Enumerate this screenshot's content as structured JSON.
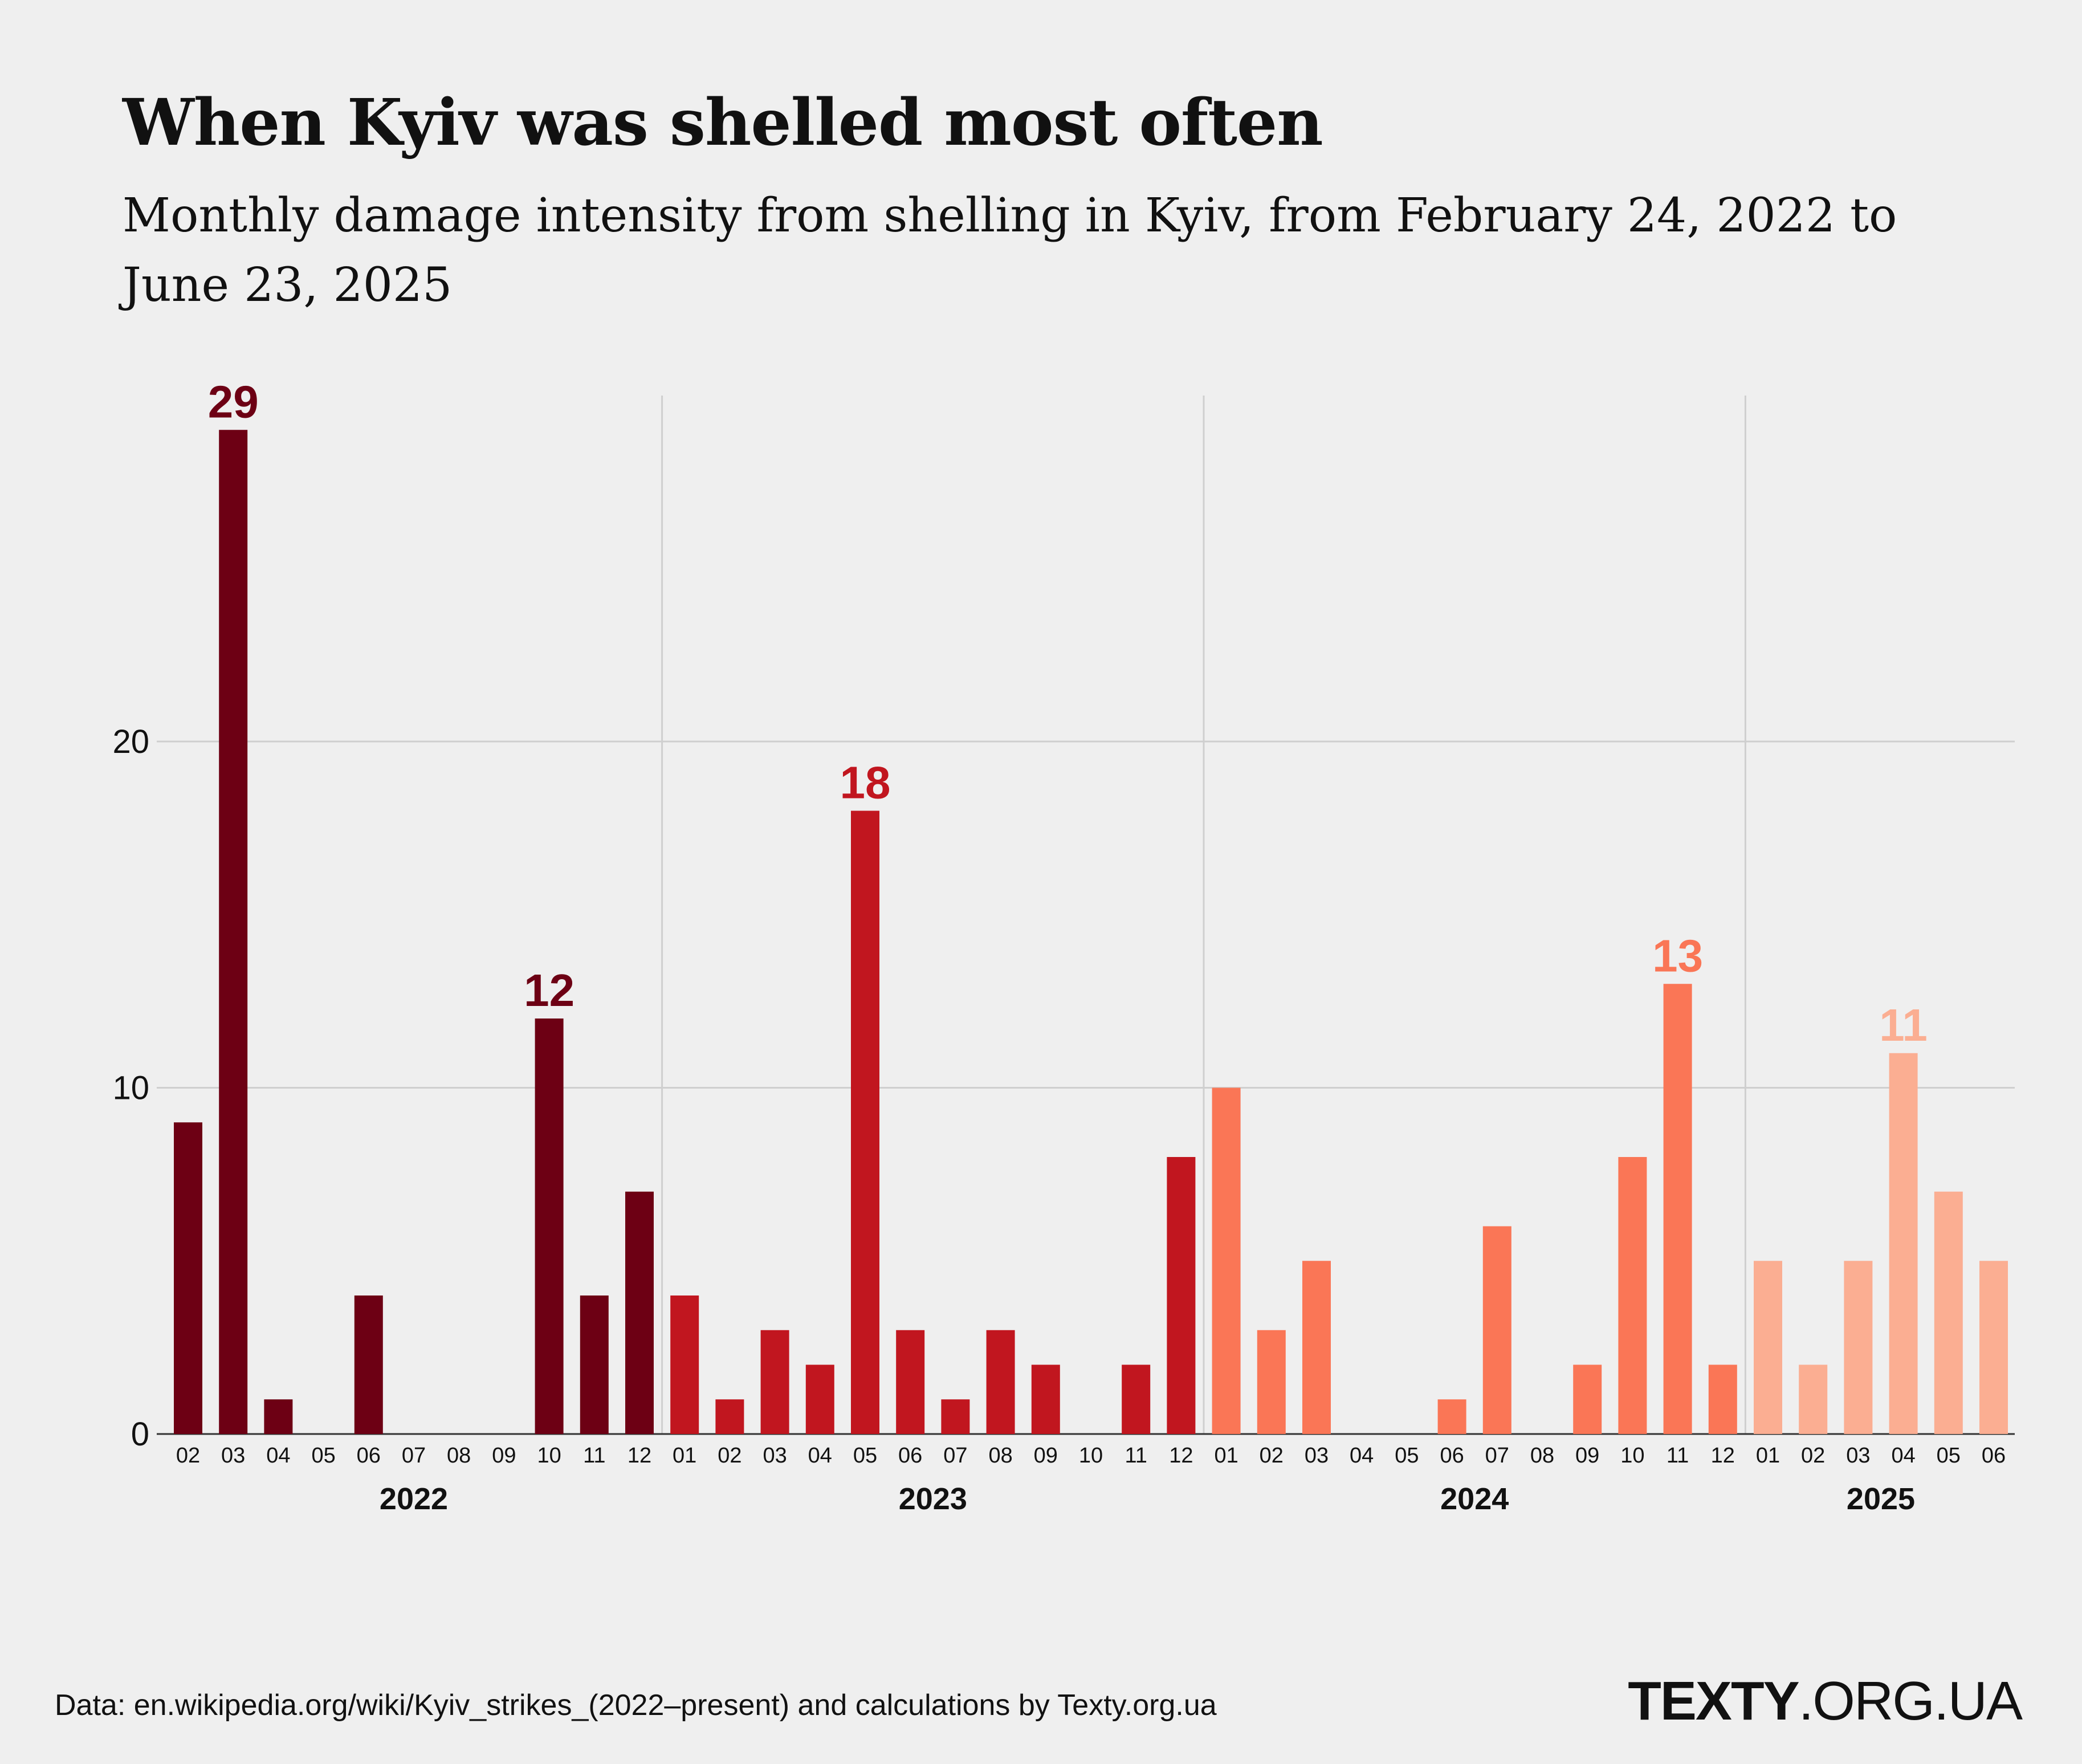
{
  "title": "When Kyiv was shelled most often",
  "subtitle": "Monthly damage intensity from shelling in Kyiv, from February 24, 2022 to June 23, 2025",
  "footer": {
    "source": "Data: en.wikipedia.org/wiki/Kyiv_strikes_(2022–present) and calculations by Texty.org.ua",
    "brand_bold": "TEXTY",
    "brand_rest": ".ORG.UA"
  },
  "colors": {
    "background": "#efefef",
    "grid": "#cfcfcf",
    "axis": "#333333",
    "y2022": "#6d0014",
    "y2023": "#c1161f",
    "y2024": "#fa7656",
    "y2025": "#fbae92"
  },
  "chart_data": {
    "type": "bar",
    "title": "When Kyiv was shelled most often",
    "xlabel": "",
    "ylabel": "",
    "ylim": [
      0,
      30
    ],
    "yticks": [
      0,
      10,
      20
    ],
    "grid": true,
    "groups": [
      {
        "year": "2022",
        "color_key": "y2022",
        "months": [
          "02",
          "03",
          "04",
          "05",
          "06",
          "07",
          "08",
          "09",
          "10",
          "11",
          "12"
        ],
        "values": [
          9,
          29,
          1,
          0,
          4,
          0,
          0,
          0,
          12,
          4,
          7
        ]
      },
      {
        "year": "2023",
        "color_key": "y2023",
        "months": [
          "01",
          "02",
          "03",
          "04",
          "05",
          "06",
          "07",
          "08",
          "09",
          "10",
          "11",
          "12"
        ],
        "values": [
          4,
          1,
          3,
          2,
          18,
          3,
          1,
          3,
          2,
          0,
          2,
          8
        ]
      },
      {
        "year": "2024",
        "color_key": "y2024",
        "months": [
          "01",
          "02",
          "03",
          "04",
          "05",
          "06",
          "07",
          "08",
          "09",
          "10",
          "11",
          "12"
        ],
        "values": [
          10,
          3,
          5,
          0,
          0,
          1,
          6,
          0,
          2,
          8,
          13,
          2
        ]
      },
      {
        "year": "2025",
        "color_key": "y2025",
        "months": [
          "01",
          "02",
          "03",
          "04",
          "05",
          "06"
        ],
        "values": [
          5,
          2,
          5,
          11,
          7,
          5
        ]
      }
    ],
    "annotations": [
      {
        "year": "2022",
        "month": "03",
        "label": "29"
      },
      {
        "year": "2022",
        "month": "10",
        "label": "12"
      },
      {
        "year": "2023",
        "month": "05",
        "label": "18"
      },
      {
        "year": "2024",
        "month": "11",
        "label": "13"
      },
      {
        "year": "2025",
        "month": "04",
        "label": "11"
      }
    ]
  }
}
